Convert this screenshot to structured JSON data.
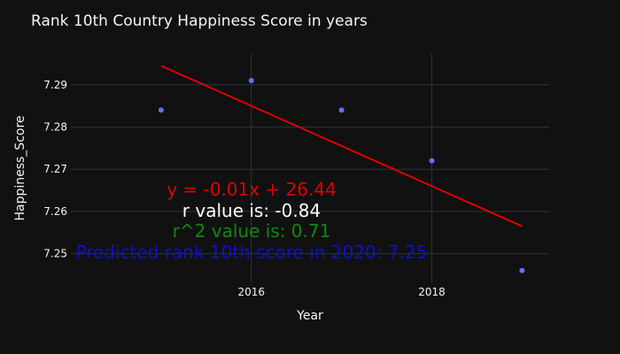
{
  "chart_data": {
    "type": "scatter",
    "title": "Rank 10th Country Happiness Score in years",
    "xlabel": "Year",
    "ylabel": "Happiness_Score",
    "x": [
      2015,
      2016,
      2017,
      2018,
      2019
    ],
    "y": [
      7.284,
      7.291,
      7.284,
      7.272,
      7.246
    ],
    "xlim": [
      2014.0,
      2019.3
    ],
    "ylim": [
      7.243,
      7.2975
    ],
    "xticks": [
      "2016",
      "2018"
    ],
    "yticks": [
      "7.25",
      "7.26",
      "7.27",
      "7.28",
      "7.29"
    ],
    "grid": true,
    "point_color": "#636efa",
    "trendline": {
      "x": [
        2015,
        2019
      ],
      "y": [
        7.2945,
        7.2565
      ],
      "color": "#e00000"
    },
    "annotations": [
      {
        "text": "y = -0.01x + 26.44",
        "color": "#e00000"
      },
      {
        "text": "r value is: -0.84",
        "color": "#ffffff"
      },
      {
        "text": "r^2 value is: 0.71",
        "color": "#118811"
      },
      {
        "text": "Predicted rank 10th score in 2020: 7.25",
        "color": "#1010c8"
      }
    ]
  }
}
